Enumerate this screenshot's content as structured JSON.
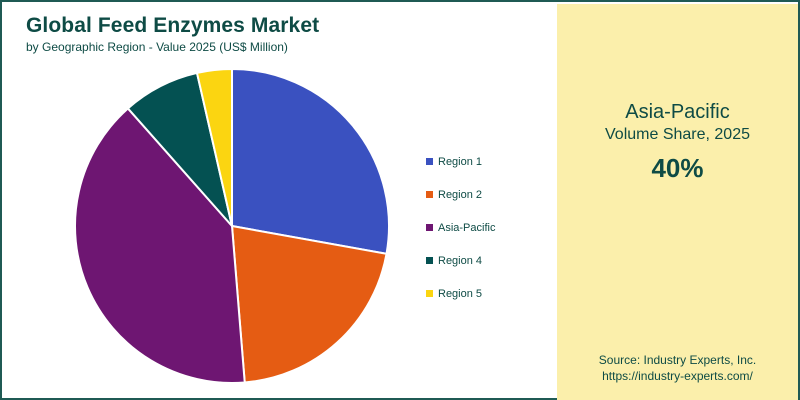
{
  "chart_data": {
    "type": "pie",
    "title": "Global Feed Enzymes Market",
    "subtitle": "by Geographic Region - Value 2025 (US$ Million)",
    "categories": [
      "Region 1",
      "Region 2",
      "Asia-Pacific",
      "Region 4",
      "Region 5"
    ],
    "values": [
      28,
      21,
      40,
      8,
      3.6
    ],
    "colors": [
      "#3a51c0",
      "#e55c13",
      "#6e1672",
      "#045152",
      "#fbd511"
    ],
    "legend_position": "right"
  },
  "highlight": {
    "region": "Asia-Pacific",
    "label": "Volume Share, 2025",
    "value": "40%"
  },
  "source": {
    "line1": "Source: Industry Experts, Inc.",
    "line2": "https://industry-experts.com/"
  }
}
